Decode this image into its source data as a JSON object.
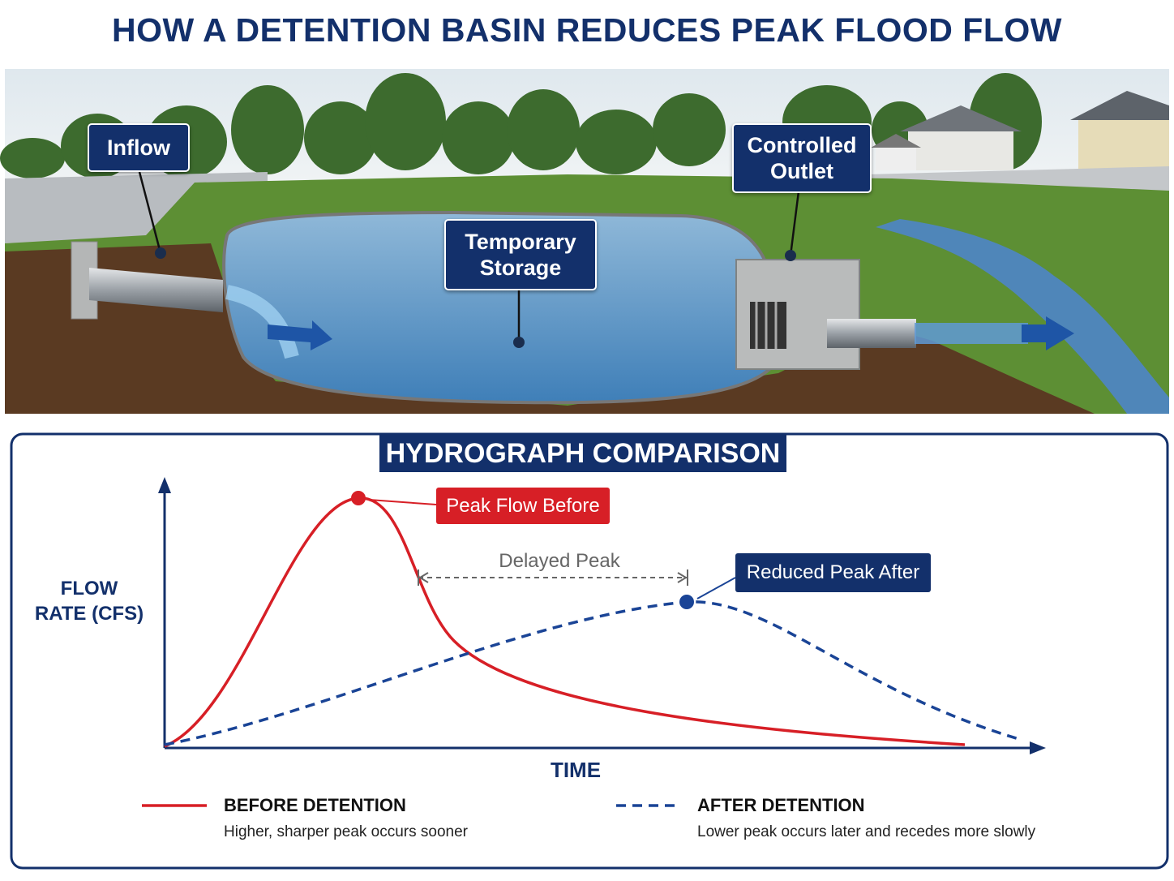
{
  "title": "HOW A DETENTION BASIN REDUCES PEAK FLOOD FLOW",
  "illustration": {
    "labels": {
      "inflow": "Inflow",
      "outlet": "Controlled Outlet",
      "storage": "Temporary Storage"
    }
  },
  "hydrograph": {
    "title": "HYDROGRAPH COMPARISON",
    "y_axis": "FLOW RATE (CFS)",
    "x_axis": "TIME",
    "annotations": {
      "peak_before": "Peak Flow Before",
      "delayed_peak": "Delayed Peak",
      "reduced_peak": "Reduced Peak After"
    },
    "legend": [
      {
        "name": "BEFORE DETENTION",
        "description": "Higher, sharper peak occurs sooner"
      },
      {
        "name": "AFTER DETENTION",
        "description": "Lower peak occurs later and recedes more slowly"
      }
    ]
  }
}
